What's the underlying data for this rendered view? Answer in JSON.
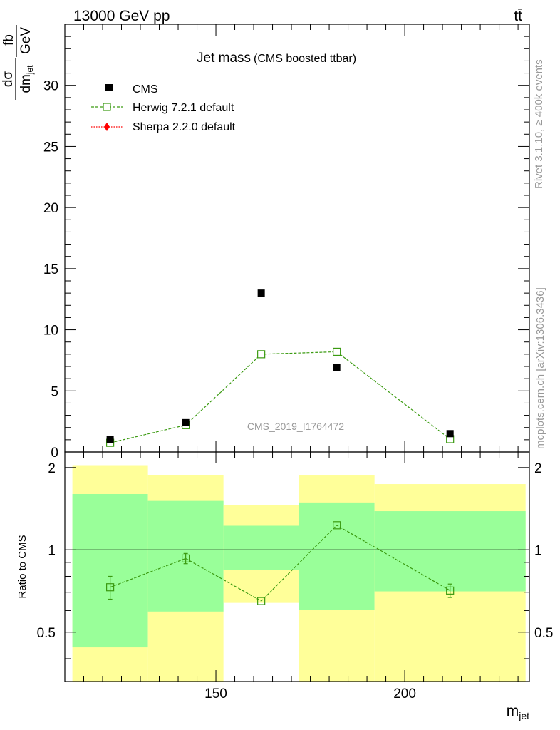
{
  "header": {
    "energy_label": "13000 GeV pp",
    "process_label": "tt̄"
  },
  "side": {
    "rivet_label": "Rivet 3.1.10, ≥ 400k events",
    "mcplots_label": "mcplots.cern.ch [arXiv:1306.3436]"
  },
  "main_plot": {
    "title": "Jet mass",
    "subtitle": "(CMS boosted ttbar)",
    "ylabel_num": "dσ",
    "ylabel_den": "dm",
    "ylabel_den_sub": "jet",
    "ylabel_unit_num": "fb",
    "ylabel_unit_den": "GeV",
    "watermark": "CMS_2019_I1764472"
  },
  "legend": {
    "cms": "CMS",
    "herwig": "Herwig 7.2.1 default",
    "sherpa": "Sherpa 2.2.0 default"
  },
  "ratio_plot": {
    "ylabel": "Ratio to CMS"
  },
  "xaxis": {
    "label": "m",
    "label_sub": "jet"
  },
  "colors": {
    "cms": "#000000",
    "herwig": "#3a9a10",
    "sherpa": "#ff0000",
    "band_inner": "#99ff99",
    "band_outer": "#ffff99",
    "watermark": "#999999"
  },
  "chart_data": {
    "type": "scatter",
    "title": "Jet mass (CMS boosted ttbar)",
    "xlabel": "m_jet",
    "ylabel": "dσ/dm_jet [fb/GeV]",
    "xlim": [
      110,
      233
    ],
    "ylim": [
      0,
      35
    ],
    "xticks": [
      150,
      200
    ],
    "yticks": [
      5,
      10,
      15,
      20,
      25,
      30
    ],
    "bins": [
      [
        112,
        132
      ],
      [
        132,
        152
      ],
      [
        152,
        172
      ],
      [
        172,
        192
      ],
      [
        192,
        232
      ]
    ],
    "x": [
      122,
      142,
      162,
      182,
      212
    ],
    "series": [
      {
        "name": "CMS",
        "values": [
          1.0,
          2.4,
          13.0,
          6.9,
          1.5
        ]
      },
      {
        "name": "Herwig 7.2.1 default",
        "values": [
          0.75,
          2.2,
          8.0,
          8.2,
          1.05
        ]
      },
      {
        "name": "Sherpa 2.2.0 default",
        "values": []
      }
    ],
    "ratio": {
      "ylabel": "Ratio to CMS",
      "ylim": [
        0.33,
        2.28
      ],
      "yticks": [
        0.5,
        1,
        2
      ],
      "reference": 1,
      "herwig_ratio": [
        0.73,
        0.93,
        0.65,
        1.23,
        0.71
      ],
      "herwig_ratio_err": [
        0.07,
        0.04,
        0.01,
        0.01,
        0.04
      ],
      "band_inner": [
        [
          0.44,
          1.6
        ],
        [
          0.595,
          1.51
        ],
        [
          0.845,
          1.225
        ],
        [
          0.605,
          1.49
        ],
        [
          0.705,
          1.385
        ]
      ],
      "band_outer": [
        [
          0.33,
          2.04
        ],
        [
          0.33,
          1.88
        ],
        [
          0.64,
          1.46
        ],
        [
          0.33,
          1.87
        ],
        [
          0.33,
          1.74
        ]
      ]
    }
  }
}
